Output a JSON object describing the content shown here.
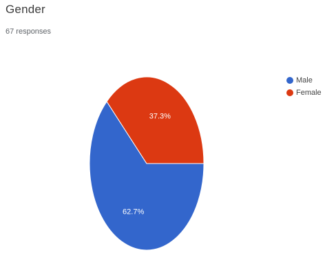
{
  "chart_data": {
    "type": "pie",
    "title": "Gender",
    "subtitle": "67 responses",
    "categories": [
      "Male",
      "Female"
    ],
    "values": [
      62.7,
      37.3
    ],
    "data_labels": [
      "62.7%",
      "37.3%"
    ],
    "colors": [
      "#3366cc",
      "#dc3912"
    ],
    "legend_position": "right"
  }
}
